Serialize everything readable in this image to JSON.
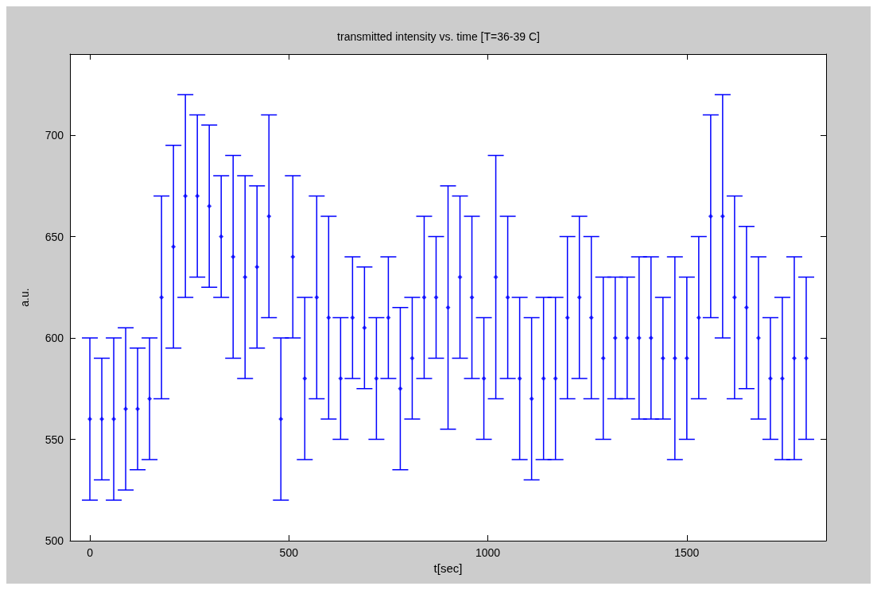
{
  "chart_data": {
    "type": "scatter",
    "title": "transmitted intensity vs. time [T=36-39 C]",
    "xlabel": "t[sec]",
    "ylabel": "a.u.",
    "x": [
      0,
      30,
      60,
      90,
      120,
      150,
      180,
      210,
      240,
      270,
      300,
      330,
      360,
      390,
      420,
      450,
      480,
      510,
      540,
      570,
      600,
      630,
      660,
      690,
      720,
      750,
      780,
      810,
      840,
      870,
      900,
      930,
      960,
      990,
      1020,
      1050,
      1080,
      1110,
      1140,
      1170,
      1200,
      1230,
      1260,
      1290,
      1320,
      1350,
      1380,
      1410,
      1440,
      1470,
      1500,
      1530,
      1560,
      1590,
      1620,
      1650,
      1680,
      1710,
      1740,
      1770,
      1800
    ],
    "series": [
      {
        "color": "#0000ff",
        "values": [
          560,
          560,
          560,
          565,
          565,
          570,
          620,
          645,
          670,
          670,
          665,
          650,
          640,
          630,
          635,
          660,
          560,
          640,
          580,
          620,
          610,
          580,
          610,
          605,
          580,
          610,
          575,
          590,
          620,
          620,
          615,
          630,
          620,
          580,
          630,
          620,
          580,
          570,
          580,
          580,
          610,
          620,
          610,
          590,
          600,
          600,
          600,
          600,
          590,
          590,
          590,
          610,
          660,
          660,
          620,
          615,
          600,
          580,
          580,
          590,
          590
        ],
        "errors": [
          [
            520,
            600
          ],
          [
            530,
            590
          ],
          [
            520,
            600
          ],
          [
            525,
            605
          ],
          [
            535,
            595
          ],
          [
            540,
            600
          ],
          [
            570,
            670
          ],
          [
            595,
            695
          ],
          [
            620,
            720
          ],
          [
            630,
            710
          ],
          [
            625,
            705
          ],
          [
            620,
            680
          ],
          [
            590,
            690
          ],
          [
            580,
            680
          ],
          [
            595,
            675
          ],
          [
            610,
            710
          ],
          [
            520,
            600
          ],
          [
            600,
            680
          ],
          [
            540,
            620
          ],
          [
            570,
            670
          ],
          [
            560,
            660
          ],
          [
            550,
            610
          ],
          [
            580,
            640
          ],
          [
            575,
            635
          ],
          [
            550,
            610
          ],
          [
            580,
            640
          ],
          [
            535,
            615
          ],
          [
            560,
            620
          ],
          [
            580,
            660
          ],
          [
            590,
            650
          ],
          [
            555,
            675
          ],
          [
            590,
            670
          ],
          [
            580,
            660
          ],
          [
            550,
            610
          ],
          [
            570,
            690
          ],
          [
            580,
            660
          ],
          [
            540,
            620
          ],
          [
            530,
            610
          ],
          [
            540,
            620
          ],
          [
            540,
            620
          ],
          [
            570,
            650
          ],
          [
            580,
            660
          ],
          [
            570,
            650
          ],
          [
            550,
            630
          ],
          [
            570,
            630
          ],
          [
            570,
            630
          ],
          [
            560,
            640
          ],
          [
            560,
            640
          ],
          [
            560,
            620
          ],
          [
            540,
            640
          ],
          [
            550,
            630
          ],
          [
            570,
            650
          ],
          [
            610,
            710
          ],
          [
            600,
            720
          ],
          [
            570,
            670
          ],
          [
            575,
            655
          ],
          [
            560,
            640
          ],
          [
            550,
            610
          ],
          [
            540,
            620
          ],
          [
            540,
            640
          ],
          [
            550,
            630
          ]
        ]
      }
    ],
    "xlim": [
      -50,
      1850
    ],
    "xticks": [
      0,
      500,
      1000,
      1500
    ],
    "ylim": [
      500,
      740
    ],
    "yticks": [
      500,
      550,
      600,
      650,
      700
    ],
    "marker": "diamond",
    "grid": false,
    "legend": false
  }
}
